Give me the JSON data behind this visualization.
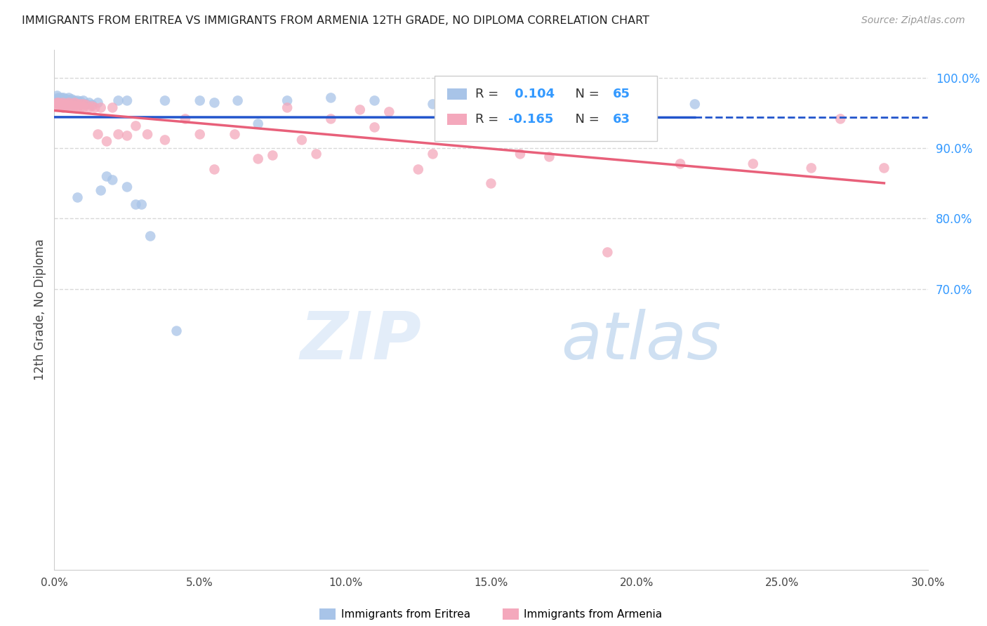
{
  "title": "IMMIGRANTS FROM ERITREA VS IMMIGRANTS FROM ARMENIA 12TH GRADE, NO DIPLOMA CORRELATION CHART",
  "source": "Source: ZipAtlas.com",
  "ylabel": "12th Grade, No Diploma",
  "legend_eritrea": "Immigrants from Eritrea",
  "legend_armenia": "Immigrants from Armenia",
  "R_eritrea": 0.104,
  "N_eritrea": 65,
  "R_armenia": -0.165,
  "N_armenia": 63,
  "color_eritrea": "#a8c4e8",
  "color_armenia": "#f4a8bc",
  "line_color_eritrea": "#2255cc",
  "line_color_armenia": "#e8607a",
  "xlim": [
    0.0,
    0.3
  ],
  "ylim": [
    0.3,
    1.04
  ],
  "xtick_labels": [
    "0.0%",
    "5.0%",
    "10.0%",
    "15.0%",
    "20.0%",
    "25.0%",
    "30.0%"
  ],
  "xtick_vals": [
    0.0,
    0.05,
    0.1,
    0.15,
    0.2,
    0.25,
    0.3
  ],
  "ytick_right_labels": [
    "100.0%",
    "90.0%",
    "80.0%",
    "70.0%"
  ],
  "ytick_right_vals": [
    1.0,
    0.9,
    0.8,
    0.7
  ],
  "eritrea_x": [
    0.0008,
    0.0009,
    0.001,
    0.0012,
    0.0013,
    0.0014,
    0.0015,
    0.0016,
    0.0018,
    0.002,
    0.002,
    0.0022,
    0.0025,
    0.003,
    0.003,
    0.003,
    0.0032,
    0.0035,
    0.004,
    0.004,
    0.004,
    0.0042,
    0.0045,
    0.005,
    0.005,
    0.005,
    0.0055,
    0.006,
    0.006,
    0.006,
    0.007,
    0.007,
    0.008,
    0.008,
    0.009,
    0.009,
    0.01,
    0.011,
    0.012,
    0.013,
    0.015,
    0.016,
    0.018,
    0.02,
    0.022,
    0.025,
    0.028,
    0.03,
    0.033,
    0.038,
    0.042,
    0.05,
    0.055,
    0.063,
    0.07,
    0.08,
    0.095,
    0.11,
    0.13,
    0.15,
    0.17,
    0.2,
    0.22,
    0.008,
    0.025
  ],
  "eritrea_y": [
    0.97,
    0.968,
    0.975,
    0.965,
    0.972,
    0.968,
    0.963,
    0.97,
    0.965,
    0.968,
    0.963,
    0.97,
    0.972,
    0.97,
    0.968,
    0.963,
    0.972,
    0.968,
    0.968,
    0.963,
    0.96,
    0.97,
    0.965,
    0.972,
    0.968,
    0.963,
    0.968,
    0.97,
    0.965,
    0.962,
    0.968,
    0.962,
    0.968,
    0.963,
    0.967,
    0.962,
    0.968,
    0.963,
    0.965,
    0.962,
    0.965,
    0.84,
    0.86,
    0.855,
    0.968,
    0.845,
    0.82,
    0.82,
    0.775,
    0.968,
    0.64,
    0.968,
    0.965,
    0.968,
    0.935,
    0.968,
    0.972,
    0.968,
    0.963,
    0.968,
    0.958,
    0.968,
    0.963,
    0.83,
    0.968
  ],
  "armenia_x": [
    0.0008,
    0.001,
    0.0012,
    0.0015,
    0.002,
    0.002,
    0.0025,
    0.003,
    0.003,
    0.003,
    0.004,
    0.004,
    0.005,
    0.005,
    0.005,
    0.006,
    0.006,
    0.007,
    0.007,
    0.008,
    0.008,
    0.009,
    0.009,
    0.01,
    0.01,
    0.011,
    0.012,
    0.013,
    0.014,
    0.015,
    0.016,
    0.018,
    0.02,
    0.022,
    0.025,
    0.028,
    0.032,
    0.038,
    0.045,
    0.055,
    0.062,
    0.07,
    0.085,
    0.095,
    0.11,
    0.13,
    0.15,
    0.17,
    0.19,
    0.215,
    0.24,
    0.26,
    0.285,
    0.05,
    0.075,
    0.105,
    0.135,
    0.08,
    0.09,
    0.115,
    0.16,
    0.125,
    0.27
  ],
  "armenia_y": [
    0.963,
    0.965,
    0.96,
    0.965,
    0.962,
    0.96,
    0.963,
    0.965,
    0.962,
    0.958,
    0.963,
    0.96,
    0.965,
    0.962,
    0.958,
    0.963,
    0.96,
    0.965,
    0.96,
    0.963,
    0.958,
    0.963,
    0.958,
    0.963,
    0.958,
    0.962,
    0.958,
    0.96,
    0.958,
    0.92,
    0.958,
    0.91,
    0.958,
    0.92,
    0.918,
    0.932,
    0.92,
    0.912,
    0.942,
    0.87,
    0.92,
    0.885,
    0.912,
    0.942,
    0.93,
    0.892,
    0.85,
    0.888,
    0.752,
    0.878,
    0.878,
    0.872,
    0.872,
    0.92,
    0.89,
    0.955,
    0.952,
    0.958,
    0.892,
    0.952,
    0.892,
    0.87,
    0.942
  ],
  "watermark_zip": "ZIP",
  "watermark_atlas": "atlas",
  "background_color": "#ffffff",
  "grid_color": "#d8d8d8"
}
